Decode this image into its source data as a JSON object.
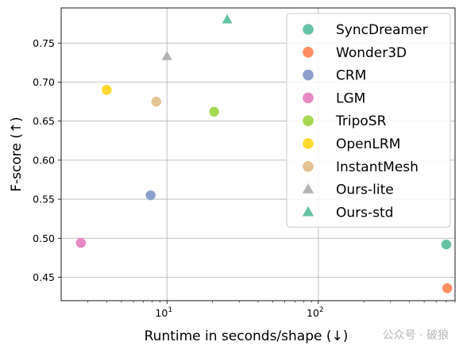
{
  "chart_data": {
    "type": "scatter",
    "xlabel": "Runtime in seconds/shape (↓)",
    "ylabel": "F-score (↑)",
    "xscale": "log",
    "xlim": [
      2.0,
      800
    ],
    "ylim": [
      0.42,
      0.795
    ],
    "grid": true,
    "legend_position": "top-right",
    "xticks": [
      {
        "value": 10,
        "base": "10",
        "exp": "1"
      },
      {
        "value": 100,
        "base": "10",
        "exp": "2"
      }
    ],
    "yticks": [
      0.45,
      0.5,
      0.55,
      0.6,
      0.65,
      0.7,
      0.75
    ],
    "series": [
      {
        "name": "SyncDreamer",
        "marker": "circle",
        "color": "#66c2a5",
        "points": [
          {
            "x": 700,
            "y": 0.492
          }
        ]
      },
      {
        "name": "Wonder3D",
        "marker": "circle",
        "color": "#fc8d62",
        "points": [
          {
            "x": 710,
            "y": 0.436
          }
        ]
      },
      {
        "name": "CRM",
        "marker": "circle",
        "color": "#8da0cb",
        "points": [
          {
            "x": 7.8,
            "y": 0.555
          }
        ]
      },
      {
        "name": "LGM",
        "marker": "circle",
        "color": "#e78ac3",
        "points": [
          {
            "x": 2.7,
            "y": 0.494
          }
        ]
      },
      {
        "name": "TripoSR",
        "marker": "circle",
        "color": "#a6d854",
        "points": [
          {
            "x": 20.5,
            "y": 0.662
          }
        ]
      },
      {
        "name": "OpenLRM",
        "marker": "circle",
        "color": "#ffd92f",
        "points": [
          {
            "x": 4.0,
            "y": 0.69
          }
        ]
      },
      {
        "name": "InstantMesh",
        "marker": "circle",
        "color": "#e5c494",
        "points": [
          {
            "x": 8.5,
            "y": 0.675
          }
        ]
      },
      {
        "name": "Ours-lite",
        "marker": "triangle",
        "color": "#b3b3b3",
        "points": [
          {
            "x": 10.0,
            "y": 0.733
          }
        ]
      },
      {
        "name": "Ours-std",
        "marker": "triangle",
        "color": "#66c2a5",
        "points": [
          {
            "x": 25.0,
            "y": 0.78
          }
        ]
      }
    ]
  },
  "watermark": "公众号 · 破狼"
}
